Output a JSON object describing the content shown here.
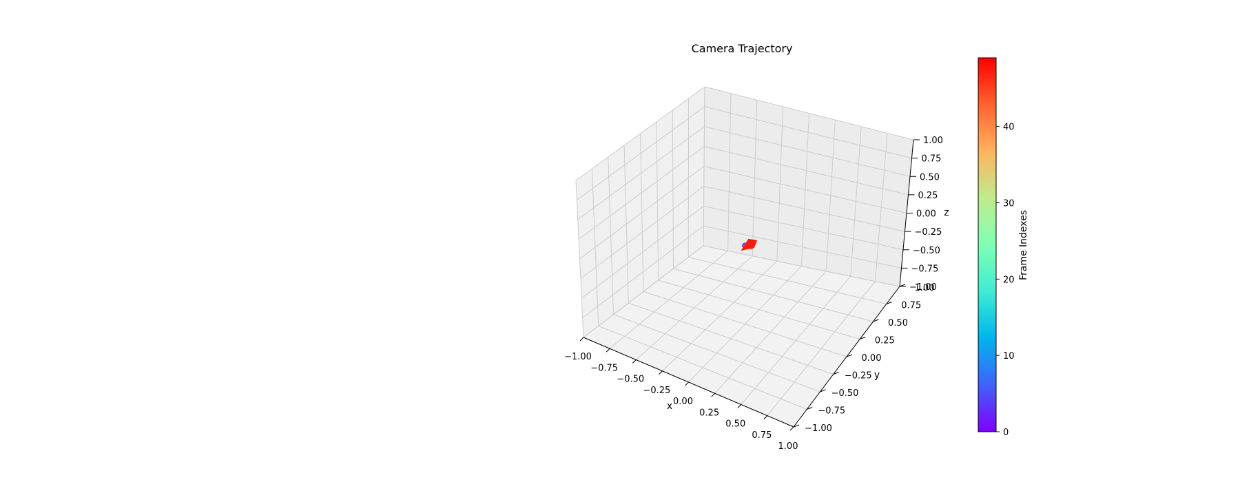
{
  "chart_data": {
    "type": "scatter",
    "projection": "3d",
    "title": "Camera Trajectory",
    "xlabel": "x",
    "ylabel": "y",
    "zlabel": "z",
    "xlim": [
      -1.0,
      1.0
    ],
    "ylim": [
      -1.0,
      1.0
    ],
    "zlim": [
      -1.0,
      1.0
    ],
    "x_ticks": [
      "−1.00",
      "−0.75",
      "−0.50",
      "−0.25",
      "0.00",
      "0.25",
      "0.50",
      "0.75",
      "1.00"
    ],
    "y_ticks": [
      "−1.00",
      "−0.75",
      "−0.50",
      "−0.25",
      "0.00",
      "0.25",
      "0.50",
      "0.75",
      "1.00"
    ],
    "z_ticks": [
      "−1.00",
      "−0.75",
      "−0.50",
      "−0.25",
      "0.00",
      "0.25",
      "0.50",
      "0.75",
      "1.00"
    ],
    "grid": true,
    "points": [
      {
        "x": 0.0,
        "y": 0.0,
        "z": 0.0,
        "frame": 0
      },
      {
        "x": 0.01,
        "y": 0.0,
        "z": 0.0,
        "frame": 10
      },
      {
        "x": 0.02,
        "y": 0.01,
        "z": 0.0,
        "frame": 20
      },
      {
        "x": 0.03,
        "y": 0.01,
        "z": 0.0,
        "frame": 30
      },
      {
        "x": 0.04,
        "y": 0.02,
        "z": 0.0,
        "frame": 40
      },
      {
        "x": 0.05,
        "y": 0.02,
        "z": 0.0,
        "frame": 49
      }
    ],
    "colorbar": {
      "label": "Frame Indexes",
      "colormap": "rainbow",
      "range": [
        0,
        49
      ],
      "ticks": [
        "0",
        "10",
        "20",
        "30",
        "40"
      ],
      "tick_values": [
        0,
        10,
        20,
        30,
        40
      ]
    }
  },
  "colors": {
    "pane_back": "#ececec",
    "pane_side": "#f0f0f0",
    "pane_floor": "#f2f2f2",
    "grid": "#cccccc",
    "camera_marker": "#ff1a0d"
  }
}
